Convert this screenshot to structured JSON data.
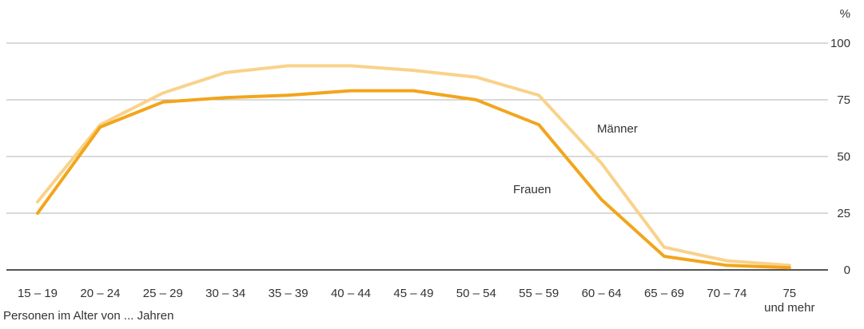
{
  "chart_data": {
    "type": "line",
    "title": "",
    "xlabel": "Personen im Alter von ... Jahren",
    "ylabel": "%",
    "ylim": [
      0,
      100
    ],
    "yticks": [
      0,
      25,
      50,
      75,
      100
    ],
    "grid": true,
    "categories": [
      "15 – 19",
      "20 – 24",
      "25 – 29",
      "30 – 34",
      "35 – 39",
      "40 – 44",
      "45 – 49",
      "50 – 54",
      "55 – 59",
      "60 – 64",
      "65 – 69",
      "70 – 74",
      "75 und mehr"
    ],
    "category_lines": [
      [
        "15 – 19"
      ],
      [
        "20 – 24"
      ],
      [
        "25 – 29"
      ],
      [
        "30 – 34"
      ],
      [
        "35 – 39"
      ],
      [
        "40 – 44"
      ],
      [
        "45 – 49"
      ],
      [
        "50 – 54"
      ],
      [
        "55 – 59"
      ],
      [
        "60 – 64"
      ],
      [
        "65 – 69"
      ],
      [
        "70 – 74"
      ],
      [
        "75",
        "und mehr"
      ]
    ],
    "series": [
      {
        "name": "Männer",
        "color": "#f9d28a",
        "values": [
          30,
          64,
          78,
          87,
          90,
          90,
          88,
          85,
          77,
          47,
          10,
          4,
          2
        ]
      },
      {
        "name": "Frauen",
        "color": "#f2a51c",
        "values": [
          25,
          63,
          74,
          76,
          77,
          79,
          79,
          75,
          64,
          31,
          6,
          2,
          1
        ]
      }
    ]
  }
}
